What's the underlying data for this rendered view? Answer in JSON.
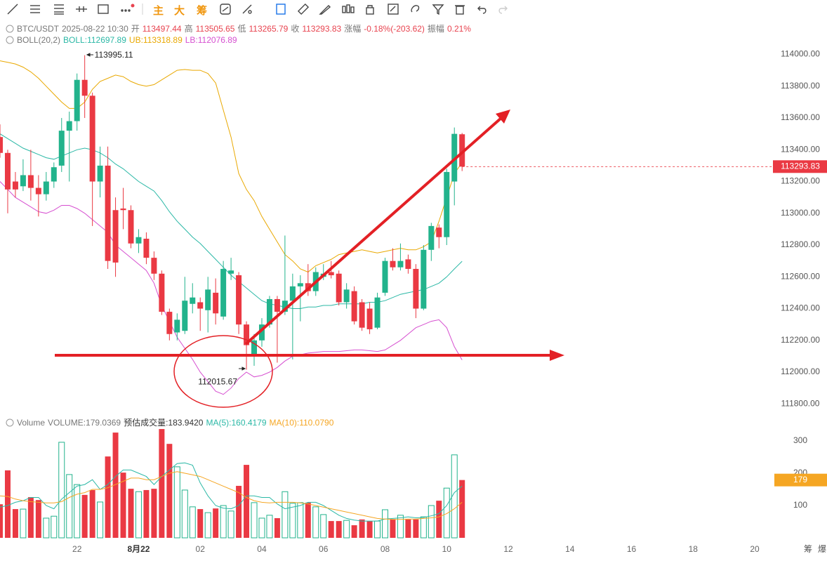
{
  "toolbar": {
    "buttons": [
      "主",
      "大",
      "筹"
    ]
  },
  "footer": [
    "筹",
    "爆"
  ],
  "chart_data": [
    {
      "type": "candlestick",
      "symbol": "BTC/USDT",
      "time": "2025-08-22 10:30",
      "quote": {
        "open_label": "开",
        "high_label": "高",
        "low_label": "低",
        "close_label": "收",
        "change_label": "涨幅",
        "change": "-0.18%(-203.62)",
        "amplitude_label": "振幅",
        "amplitude": "0.21%"
      },
      "indicator": "BOLL(20,2)",
      "up_color": "#22b38c",
      "down_color": "#ea3943",
      "open": [
        113480,
        113380,
        113200,
        113170,
        113240,
        113160,
        113120,
        113200,
        113300,
        113520,
        113580,
        113840,
        113740,
        113200,
        113300,
        113020,
        113030,
        113020,
        112810,
        112840,
        112720,
        112620,
        112380,
        112250,
        112260,
        112430,
        112440,
        112390,
        112500,
        112350,
        112620,
        112610,
        112300,
        112100,
        112200,
        112300,
        112460,
        112380,
        112450,
        112540,
        112560,
        112510,
        112600,
        112630,
        112620,
        112440,
        112510,
        112440,
        112400,
        112280,
        112500,
        112700,
        112660,
        112710,
        112650,
        112400,
        112770,
        112910,
        112850,
        113200,
        113497.44
      ],
      "high": [
        113560,
        113400,
        113260,
        113340,
        113400,
        113240,
        113260,
        113320,
        113600,
        113640,
        113880,
        113995.11,
        113760,
        113420,
        113420,
        113100,
        113160,
        113050,
        112900,
        112880,
        112760,
        112640,
        112400,
        112370,
        112600,
        112560,
        112470,
        112600,
        112590,
        112700,
        112720,
        112630,
        112320,
        112240,
        112340,
        112480,
        112480,
        112860,
        112620,
        112610,
        112680,
        112660,
        112680,
        112700,
        112640,
        112560,
        112540,
        112460,
        112440,
        112500,
        112720,
        112780,
        112810,
        112740,
        112680,
        112800,
        112940,
        112930,
        113280,
        113540,
        113505.65
      ],
      "low": [
        113350,
        113000,
        113100,
        113140,
        113080,
        112980,
        113080,
        113160,
        113260,
        113200,
        113520,
        113600,
        112920,
        113100,
        112650,
        112600,
        112900,
        112780,
        112750,
        112680,
        112580,
        112360,
        112200,
        112200,
        112240,
        112370,
        112260,
        112250,
        112300,
        112330,
        112580,
        112240,
        112015.67,
        112040,
        112160,
        112280,
        112060,
        112360,
        112080,
        112320,
        112480,
        112480,
        112580,
        112590,
        112420,
        112400,
        112300,
        112260,
        112240,
        112270,
        112480,
        112640,
        112640,
        112620,
        112340,
        112390,
        112700,
        112780,
        112800,
        113050,
        113265.79
      ],
      "close": [
        113380,
        113150,
        113150,
        113240,
        113160,
        113120,
        113200,
        113290,
        113520,
        113580,
        113840,
        113740,
        113200,
        113300,
        112700,
        112690,
        113020,
        112810,
        112850,
        112720,
        112620,
        112380,
        112240,
        112330,
        112450,
        112470,
        112400,
        112520,
        112370,
        112650,
        112640,
        112300,
        112170,
        112200,
        112300,
        112460,
        112380,
        112450,
        112540,
        112560,
        112510,
        112630,
        112620,
        112610,
        112440,
        112520,
        112320,
        112280,
        112270,
        112470,
        112700,
        112660,
        112700,
        112650,
        112400,
        112770,
        112920,
        112850,
        113260,
        113500,
        113293.83
      ],
      "series": [
        {
          "name": "BOLL:112697.89",
          "color": "#2bb8a6",
          "values": [
            113500,
            113470,
            113440,
            113410,
            113390,
            113370,
            113350,
            113340,
            113360,
            113380,
            113400,
            113410,
            113400,
            113380,
            113350,
            113310,
            113280,
            113240,
            113200,
            113170,
            113140,
            113080,
            113010,
            112950,
            112900,
            112850,
            112810,
            112760,
            112710,
            112660,
            112610,
            112570,
            112530,
            112490,
            112450,
            112430,
            112420,
            112410,
            112400,
            112400,
            112410,
            112410,
            112420,
            112420,
            112430,
            112430,
            112430,
            112430,
            112440,
            112440,
            112450,
            112470,
            112490,
            112500,
            112510,
            112520,
            112540,
            112560,
            112600,
            112650,
            112697.89
          ]
        },
        {
          "name": "UB:113318.89",
          "color": "#e9a800",
          "values": [
            113960,
            113950,
            113940,
            113920,
            113890,
            113850,
            113800,
            113750,
            113700,
            113660,
            113660,
            113700,
            113780,
            113830,
            113850,
            113870,
            113860,
            113830,
            113810,
            113800,
            113810,
            113840,
            113870,
            113900,
            113905,
            113900,
            113900,
            113880,
            113820,
            113650,
            113480,
            113250,
            113150,
            113080,
            112980,
            112900,
            112820,
            112740,
            112700,
            112650,
            112630,
            112670,
            112690,
            112710,
            112740,
            112750,
            112760,
            112770,
            112760,
            112750,
            112760,
            112770,
            112780,
            112770,
            112770,
            112790,
            112820,
            112950,
            113100,
            113250,
            113318.89
          ]
        },
        {
          "name": "LB:112076.89",
          "color": "#d64fd0",
          "values": [
            113200,
            113150,
            113100,
            113070,
            113040,
            113010,
            113000,
            113020,
            113050,
            113050,
            113030,
            113000,
            112960,
            112920,
            112880,
            112800,
            112760,
            112720,
            112680,
            112640,
            112560,
            112420,
            112320,
            112220,
            112150,
            112080,
            112000,
            111940,
            111880,
            111860,
            111900,
            111960,
            112000,
            111970,
            111980,
            112000,
            112030,
            112070,
            112100,
            112110,
            112120,
            112125,
            112130,
            112130,
            112130,
            112135,
            112140,
            112140,
            112135,
            112130,
            112140,
            112170,
            112200,
            112240,
            112280,
            112300,
            112320,
            112330,
            112280,
            112160,
            112076.89
          ]
        }
      ],
      "xlim": [
        0,
        100
      ],
      "ylim": [
        111735,
        114210
      ],
      "yticks": [
        {
          "value": 111800,
          "label": "111800.00"
        },
        {
          "value": 112000,
          "label": "112000.00"
        },
        {
          "value": 112200,
          "label": "112200.00"
        },
        {
          "value": 112400,
          "label": "112400.00"
        },
        {
          "value": 112600,
          "label": "112600.00"
        },
        {
          "value": 112800,
          "label": "112800.00"
        },
        {
          "value": 113000,
          "label": "113000.00"
        },
        {
          "value": 113200,
          "label": "113200.00"
        },
        {
          "value": 113400,
          "label": "113400.00"
        },
        {
          "value": 113600,
          "label": "113600.00"
        },
        {
          "value": 113800,
          "label": "113800.00"
        },
        {
          "value": 114000,
          "label": "114000.00"
        }
      ]
    },
    {
      "type": "bar",
      "title": "Volume",
      "legend": [
        "VOLUME:179.0369",
        "预估成交量:183.9420"
      ],
      "values": [
        104,
        209,
        89,
        89,
        126,
        117,
        61,
        67,
        296,
        196,
        165,
        133,
        148,
        111,
        252,
        326,
        202,
        152,
        143,
        148,
        152,
        337,
        291,
        220,
        148,
        96,
        89,
        78,
        91,
        100,
        83,
        161,
        226,
        109,
        61,
        70,
        61,
        143,
        107,
        109,
        109,
        96,
        72,
        52,
        52,
        54,
        39,
        57,
        52,
        52,
        87,
        57,
        70,
        57,
        57,
        65,
        100,
        115,
        154,
        257,
        179.0369
      ],
      "current_label": "179",
      "current_color": "#f5a623",
      "series": [
        {
          "name": "MA(5):160.4179",
          "color": "#2bb8a6",
          "values": [
            95,
            100,
            110,
            115,
            125,
            125,
            100,
            90,
            120,
            140,
            160,
            165,
            180,
            150,
            165,
            190,
            210,
            210,
            200,
            190,
            165,
            190,
            210,
            230,
            232,
            225,
            170,
            130,
            100,
            92,
            90,
            100,
            130,
            130,
            125,
            125,
            105,
            90,
            95,
            100,
            110,
            110,
            100,
            85,
            70,
            60,
            55,
            52,
            52,
            52,
            58,
            60,
            62,
            65,
            62,
            63,
            68,
            75,
            100,
            140,
            160.4179
          ]
        },
        {
          "name": "MA(10):110.0790",
          "color": "#f5a623",
          "values": [
            130,
            128,
            120,
            115,
            112,
            110,
            108,
            108,
            112,
            125,
            135,
            140,
            150,
            150,
            155,
            165,
            175,
            185,
            185,
            180,
            180,
            190,
            200,
            205,
            200,
            195,
            190,
            180,
            170,
            160,
            150,
            140,
            125,
            115,
            110,
            108,
            110,
            110,
            110,
            108,
            105,
            100,
            95,
            90,
            85,
            80,
            75,
            70,
            65,
            60,
            58,
            57,
            57,
            58,
            58,
            60,
            62,
            65,
            75,
            90,
            110.079
          ]
        }
      ],
      "xlim": [
        0,
        100
      ],
      "xticks": [
        {
          "value": 10,
          "label": "22"
        },
        {
          "value": 18,
          "label": "8月22"
        },
        {
          "value": 26,
          "label": "02"
        },
        {
          "value": 34,
          "label": "04"
        },
        {
          "value": 42,
          "label": "06"
        },
        {
          "value": 50,
          "label": "08"
        },
        {
          "value": 58,
          "label": "10"
        },
        {
          "value": 66,
          "label": "12"
        },
        {
          "value": 74,
          "label": "14"
        },
        {
          "value": 82,
          "label": "16"
        },
        {
          "value": 90,
          "label": "18"
        },
        {
          "value": 98,
          "label": "20"
        }
      ],
      "ylim": [
        0,
        361
      ],
      "yticks": [
        100,
        200,
        300
      ]
    }
  ]
}
